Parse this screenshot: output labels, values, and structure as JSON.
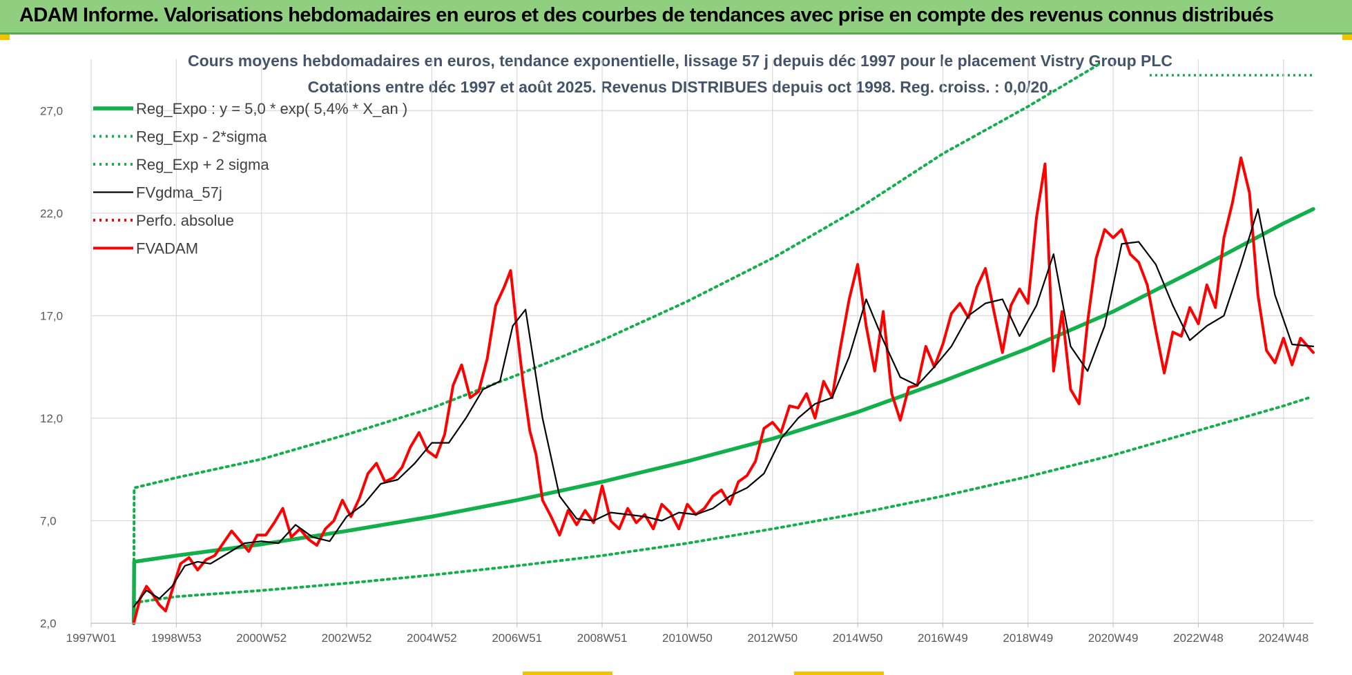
{
  "banner": {
    "title": "ADAM Informe. Valorisations hebdomadaires en euros et des courbes de tendances avec prise en compte des revenus connus distribués"
  },
  "colors": {
    "banner_bg": "#8fcf7f",
    "green": "#12b04b",
    "black": "#000000",
    "red": "#ff0000",
    "grid": "#d9d9d9",
    "accent_bar": "#f2c200"
  },
  "chart_data": {
    "type": "line",
    "title": "Cours moyens hebdomadaires en euros, tendance exponentielle, lissage 57 j depuis déc 1997 pour le placement Vistry Group PLC",
    "subtitle": "Cotations entre déc 1997 et août 2025. Revenus DISTRIBUES depuis oct 1998. Reg. croiss. : 0,0/20.",
    "xlabel": "",
    "ylabel": "",
    "ylim": [
      2.0,
      29.5
    ],
    "yticks": [
      "2,0",
      "7,0",
      "12,0",
      "17,0",
      "22,0",
      "27,0"
    ],
    "ytick_values": [
      2,
      7,
      12,
      17,
      22,
      27
    ],
    "xlim": [
      1997.0,
      2025.7
    ],
    "xticks": [
      "1997W01",
      "1998W53",
      "2000W52",
      "2002W52",
      "2004W52",
      "2006W51",
      "2008W51",
      "2010W50",
      "2012W50",
      "2014W50",
      "2016W49",
      "2018W49",
      "2020W49",
      "2022W48",
      "2024W48"
    ],
    "xtick_values": [
      1997.0,
      1999.0,
      2001.0,
      2003.0,
      2005.0,
      2007.0,
      2009.0,
      2011.0,
      2013.0,
      2015.0,
      2017.0,
      2019.0,
      2021.0,
      2023.0,
      2025.0
    ],
    "grid": true,
    "legend_position": "top-left",
    "series": [
      {
        "name": "Reg_Expo : y = 5,0 * exp( 5,4% *  X_an )",
        "style": "solid-thick",
        "color": "#12b04b",
        "x": [
          1998.0,
          1998.01,
          1999.0,
          2001.0,
          2003.0,
          2005.0,
          2007.0,
          2009.0,
          2011.0,
          2013.0,
          2015.0,
          2017.0,
          2019.0,
          2021.0,
          2023.0,
          2025.0,
          2025.7
        ],
        "y": [
          2.0,
          5.0,
          5.3,
          5.85,
          6.5,
          7.2,
          8.0,
          8.9,
          9.9,
          11.0,
          12.3,
          13.8,
          15.4,
          17.2,
          19.3,
          21.5,
          22.2
        ]
      },
      {
        "name": "Reg_Exp - 2*sigma",
        "style": "dotted",
        "color": "#12b04b",
        "x": [
          1998.0,
          1999.0,
          2001.0,
          2003.0,
          2005.0,
          2007.0,
          2009.0,
          2011.0,
          2013.0,
          2015.0,
          2017.0,
          2019.0,
          2021.0,
          2023.0,
          2025.0,
          2025.6
        ],
        "y": [
          3.0,
          3.3,
          3.6,
          3.95,
          4.35,
          4.8,
          5.3,
          5.9,
          6.6,
          7.35,
          8.2,
          9.15,
          10.2,
          11.4,
          12.6,
          13.0
        ]
      },
      {
        "name": "Reg_Exp + 2 sigma",
        "style": "dotted",
        "color": "#12b04b",
        "x": [
          1998.0,
          1998.01,
          1999.0,
          2001.0,
          2003.0,
          2005.0,
          2007.0,
          2009.0,
          2011.0,
          2013.0,
          2015.0,
          2017.0,
          2019.0,
          2020.7
        ],
        "y": [
          2.0,
          8.6,
          9.1,
          10.0,
          11.2,
          12.5,
          14.1,
          15.8,
          17.7,
          19.8,
          22.2,
          24.9,
          27.2,
          29.3
        ]
      },
      {
        "name": "FVgdma_57j",
        "style": "solid",
        "color": "#000000",
        "x": [
          1998.0,
          1998.3,
          1998.6,
          1998.9,
          1999.2,
          1999.5,
          1999.8,
          2000.2,
          2000.6,
          2001.0,
          2001.4,
          2001.8,
          2002.2,
          2002.6,
          2003.0,
          2003.4,
          2003.8,
          2004.2,
          2004.6,
          2005.0,
          2005.4,
          2005.8,
          2006.2,
          2006.6,
          2006.9,
          2007.2,
          2007.6,
          2008.0,
          2008.4,
          2008.8,
          2009.2,
          2009.6,
          2010.0,
          2010.4,
          2010.8,
          2011.2,
          2011.6,
          2012.0,
          2012.4,
          2012.8,
          2013.2,
          2013.6,
          2014.0,
          2014.4,
          2014.8,
          2015.2,
          2015.6,
          2016.0,
          2016.4,
          2016.8,
          2017.2,
          2017.6,
          2018.0,
          2018.4,
          2018.8,
          2019.2,
          2019.6,
          2020.0,
          2020.4,
          2020.8,
          2021.2,
          2021.6,
          2022.0,
          2022.4,
          2022.8,
          2023.2,
          2023.6,
          2024.0,
          2024.4,
          2024.8,
          2025.2,
          2025.7
        ],
        "y": [
          2.8,
          3.6,
          3.2,
          3.8,
          4.8,
          5.0,
          4.9,
          5.4,
          5.9,
          6.0,
          5.9,
          6.8,
          6.2,
          6.0,
          7.2,
          7.8,
          8.8,
          9.0,
          9.8,
          10.8,
          10.8,
          12.0,
          13.4,
          13.8,
          16.5,
          17.3,
          12.0,
          8.2,
          7.1,
          7.0,
          7.4,
          7.3,
          7.2,
          7.0,
          7.4,
          7.3,
          7.6,
          8.2,
          8.6,
          9.3,
          11.0,
          12.0,
          12.7,
          13.0,
          15.0,
          17.8,
          15.8,
          14.0,
          13.6,
          14.5,
          15.5,
          17.0,
          17.6,
          17.8,
          16.0,
          17.5,
          20.0,
          15.5,
          14.3,
          16.5,
          20.5,
          20.6,
          19.5,
          17.5,
          15.8,
          16.5,
          17.0,
          19.5,
          22.2,
          18.0,
          15.6,
          15.5
        ]
      },
      {
        "name": "Perfo. absolue",
        "style": "dotted",
        "color": "#ff0000",
        "x": [],
        "y": []
      },
      {
        "name": "FVADAM",
        "style": "solid-thick",
        "color": "#ff0000",
        "x": [
          1998.0,
          1998.15,
          1998.3,
          1998.45,
          1998.6,
          1998.75,
          1998.9,
          1999.1,
          1999.3,
          1999.5,
          1999.7,
          1999.9,
          2000.1,
          2000.3,
          2000.5,
          2000.7,
          2000.9,
          2001.1,
          2001.3,
          2001.5,
          2001.7,
          2001.9,
          2002.1,
          2002.3,
          2002.5,
          2002.7,
          2002.9,
          2003.1,
          2003.3,
          2003.5,
          2003.7,
          2003.9,
          2004.1,
          2004.3,
          2004.5,
          2004.7,
          2004.9,
          2005.1,
          2005.3,
          2005.5,
          2005.7,
          2005.9,
          2006.1,
          2006.3,
          2006.5,
          2006.7,
          2006.85,
          2007.0,
          2007.15,
          2007.3,
          2007.45,
          2007.6,
          2007.8,
          2008.0,
          2008.2,
          2008.4,
          2008.6,
          2008.8,
          2009.0,
          2009.2,
          2009.4,
          2009.6,
          2009.8,
          2010.0,
          2010.2,
          2010.4,
          2010.6,
          2010.8,
          2011.0,
          2011.2,
          2011.4,
          2011.6,
          2011.8,
          2012.0,
          2012.2,
          2012.4,
          2012.6,
          2012.8,
          2013.0,
          2013.2,
          2013.4,
          2013.6,
          2013.8,
          2014.0,
          2014.2,
          2014.4,
          2014.6,
          2014.8,
          2015.0,
          2015.2,
          2015.4,
          2015.6,
          2015.8,
          2016.0,
          2016.2,
          2016.4,
          2016.6,
          2016.8,
          2017.0,
          2017.2,
          2017.4,
          2017.6,
          2017.8,
          2018.0,
          2018.2,
          2018.4,
          2018.6,
          2018.8,
          2019.0,
          2019.2,
          2019.4,
          2019.6,
          2019.8,
          2020.0,
          2020.2,
          2020.4,
          2020.6,
          2020.8,
          2021.0,
          2021.2,
          2021.4,
          2021.6,
          2021.8,
          2022.0,
          2022.2,
          2022.4,
          2022.6,
          2022.8,
          2023.0,
          2023.2,
          2023.4,
          2023.6,
          2023.8,
          2024.0,
          2024.2,
          2024.4,
          2024.6,
          2024.8,
          2025.0,
          2025.2,
          2025.4,
          2025.7
        ],
        "y": [
          2.0,
          3.2,
          3.8,
          3.4,
          2.9,
          2.6,
          3.6,
          4.9,
          5.2,
          4.6,
          5.1,
          5.3,
          5.9,
          6.5,
          6.0,
          5.5,
          6.3,
          6.3,
          6.9,
          7.6,
          6.2,
          6.6,
          6.1,
          5.8,
          6.6,
          7.0,
          8.0,
          7.2,
          8.1,
          9.3,
          9.8,
          8.9,
          9.1,
          9.6,
          10.6,
          11.3,
          10.4,
          10.1,
          11.2,
          13.6,
          14.6,
          13.0,
          13.3,
          14.9,
          17.5,
          18.4,
          19.2,
          16.3,
          13.6,
          11.4,
          10.2,
          8.0,
          7.2,
          6.3,
          7.5,
          6.8,
          7.5,
          6.9,
          8.7,
          7.0,
          6.6,
          7.6,
          6.9,
          7.3,
          6.6,
          7.8,
          7.4,
          6.6,
          7.8,
          7.3,
          7.6,
          8.2,
          8.5,
          7.8,
          8.9,
          9.2,
          9.9,
          11.5,
          11.8,
          11.3,
          12.6,
          12.5,
          13.2,
          12.0,
          13.8,
          13.0,
          15.5,
          17.8,
          19.5,
          16.5,
          14.3,
          17.2,
          13.2,
          11.9,
          13.5,
          13.6,
          15.5,
          14.5,
          15.6,
          17.1,
          17.6,
          16.9,
          18.4,
          19.3,
          17.2,
          15.2,
          17.5,
          18.3,
          17.6,
          21.8,
          24.4,
          14.3,
          17.2,
          13.4,
          12.7,
          16.7,
          19.8,
          21.2,
          20.8,
          21.2,
          20.0,
          19.6,
          18.5,
          16.3,
          14.2,
          16.2,
          16.0,
          17.4,
          16.6,
          18.5,
          17.4,
          20.8,
          22.5,
          24.7,
          23.0,
          18.0,
          15.3,
          14.7,
          15.9,
          14.6,
          15.9,
          15.2
        ]
      }
    ]
  }
}
